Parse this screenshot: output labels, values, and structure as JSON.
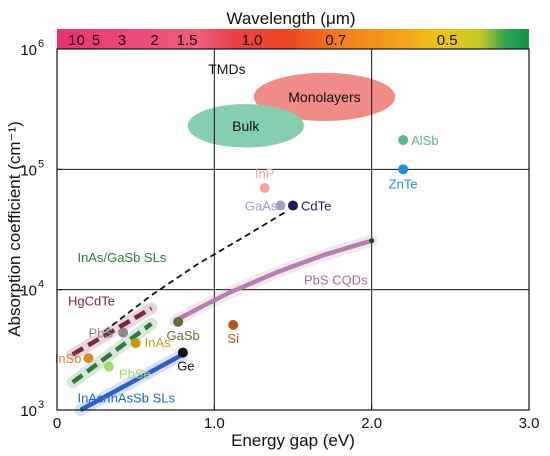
{
  "chart_data": {
    "type": "scatter",
    "xlabel": "Energy gap (eV)",
    "ylabel": "Absorption coefficient (cm⁻¹)",
    "top_axis_title": "Wavelength (μm)",
    "xlim": [
      0,
      3.0
    ],
    "ylim": [
      1000,
      1000000
    ],
    "y_scale": "log",
    "grid": true,
    "x_ticks": [
      {
        "value": 0,
        "label": "0"
      },
      {
        "value": 1.0,
        "label": "1.0"
      },
      {
        "value": 2.0,
        "label": "2.0"
      },
      {
        "value": 3.0,
        "label": "3.0"
      }
    ],
    "y_ticks": [
      {
        "value": 1000,
        "base": "10",
        "exp": "3"
      },
      {
        "value": 10000,
        "base": "10",
        "exp": "4"
      },
      {
        "value": 100000,
        "base": "10",
        "exp": "5"
      },
      {
        "value": 1000000,
        "base": "10",
        "exp": "6"
      }
    ],
    "wavelength_ticks": [
      {
        "label": "10",
        "energy": 0.124
      },
      {
        "label": "5",
        "energy": 0.248
      },
      {
        "label": "3",
        "energy": 0.413
      },
      {
        "label": "2",
        "energy": 0.62
      },
      {
        "label": "1.5",
        "energy": 0.827
      },
      {
        "label": "1.0",
        "energy": 1.24
      },
      {
        "label": "0.7",
        "energy": 1.771
      },
      {
        "label": "0.5",
        "energy": 2.48
      }
    ],
    "points": [
      {
        "name": "AlSb",
        "x": 2.2,
        "y": 175000,
        "color": "#5cb88c"
      },
      {
        "name": "ZnTe",
        "x": 2.2,
        "y": 100000,
        "color": "#1e8fd6"
      },
      {
        "name": "InP",
        "x": 1.32,
        "y": 70000,
        "color": "#f3a3a3"
      },
      {
        "name": "GaAs",
        "x": 1.42,
        "y": 50000,
        "color": "#a89bc6"
      },
      {
        "name": "CdTe",
        "x": 1.5,
        "y": 50000,
        "color": "#2a1660"
      },
      {
        "name": "GaSb",
        "x": 0.77,
        "y": 5400,
        "color": "#6f6a3a"
      },
      {
        "name": "Si",
        "x": 1.12,
        "y": 5100,
        "color": "#b5571c"
      },
      {
        "name": "Ge",
        "x": 0.8,
        "y": 3000,
        "color": "#111111"
      },
      {
        "name": "InAs",
        "x": 0.5,
        "y": 3600,
        "color": "#c49a19"
      },
      {
        "name": "PbS",
        "x": 0.42,
        "y": 4400,
        "color": "#8c8c8c"
      },
      {
        "name": "InSb",
        "x": 0.2,
        "y": 2700,
        "color": "#d48b35"
      },
      {
        "name": "PbSe",
        "x": 0.33,
        "y": 2300,
        "color": "#a6d86a"
      }
    ],
    "regions": [
      {
        "name": "TMDs",
        "kind": "label",
        "x": 1.08,
        "y": 620000
      },
      {
        "name": "Monolayers",
        "cx": 1.7,
        "cy": 400000,
        "rx": 0.45,
        "ry_dec": 0.2,
        "color": "#f08b86"
      },
      {
        "name": "Bulk",
        "cx": 1.2,
        "cy": 230000,
        "rx": 0.37,
        "ry_dec": 0.18,
        "color": "#86cfae"
      }
    ],
    "lines": [
      {
        "name": "PbS CQDs",
        "color": "#b77fb1",
        "style": "solid",
        "points": [
          [
            0.75,
            5500
          ],
          [
            0.9,
            7000
          ],
          [
            1.1,
            9500
          ],
          [
            1.4,
            14000
          ],
          [
            1.7,
            19500
          ],
          [
            2.0,
            25500
          ]
        ]
      },
      {
        "name": "dashed-trend",
        "color": "#111111",
        "style": "dashed",
        "points": [
          [
            0.3,
            4500
          ],
          [
            0.6,
            9000
          ],
          [
            0.9,
            16500
          ],
          [
            1.2,
            28000
          ],
          [
            1.45,
            44000
          ]
        ]
      },
      {
        "name": "HgCdTe",
        "color": "#7a2448",
        "style": "dashed",
        "points": [
          [
            0.1,
            2900
          ],
          [
            0.6,
            7000
          ]
        ]
      },
      {
        "name": "InAs/GaSb SLs",
        "color": "#2f7a3a",
        "style": "dashed",
        "points": [
          [
            0.1,
            1700
          ],
          [
            0.6,
            5200
          ]
        ]
      },
      {
        "name": "InAs/InAsSb SLs",
        "color": "#2e5fc9",
        "style": "solid",
        "points": [
          [
            0.15,
            1000
          ],
          [
            0.8,
            2900
          ]
        ]
      }
    ],
    "series_labels": [
      {
        "name": "InAs/GaSb SLs",
        "x": 0.13,
        "y": 17000,
        "color": "#2f7a3a"
      },
      {
        "name": "HgCdTe",
        "x": 0.07,
        "y": 7400,
        "color": "#7a2448"
      },
      {
        "name": "PbS CQDs",
        "x": 1.57,
        "y": 11000,
        "color": "#a6679f"
      },
      {
        "name": "InAs/InAsSb SLs",
        "x": 0.13,
        "y": 1150,
        "color": "#1e64c8"
      }
    ]
  }
}
